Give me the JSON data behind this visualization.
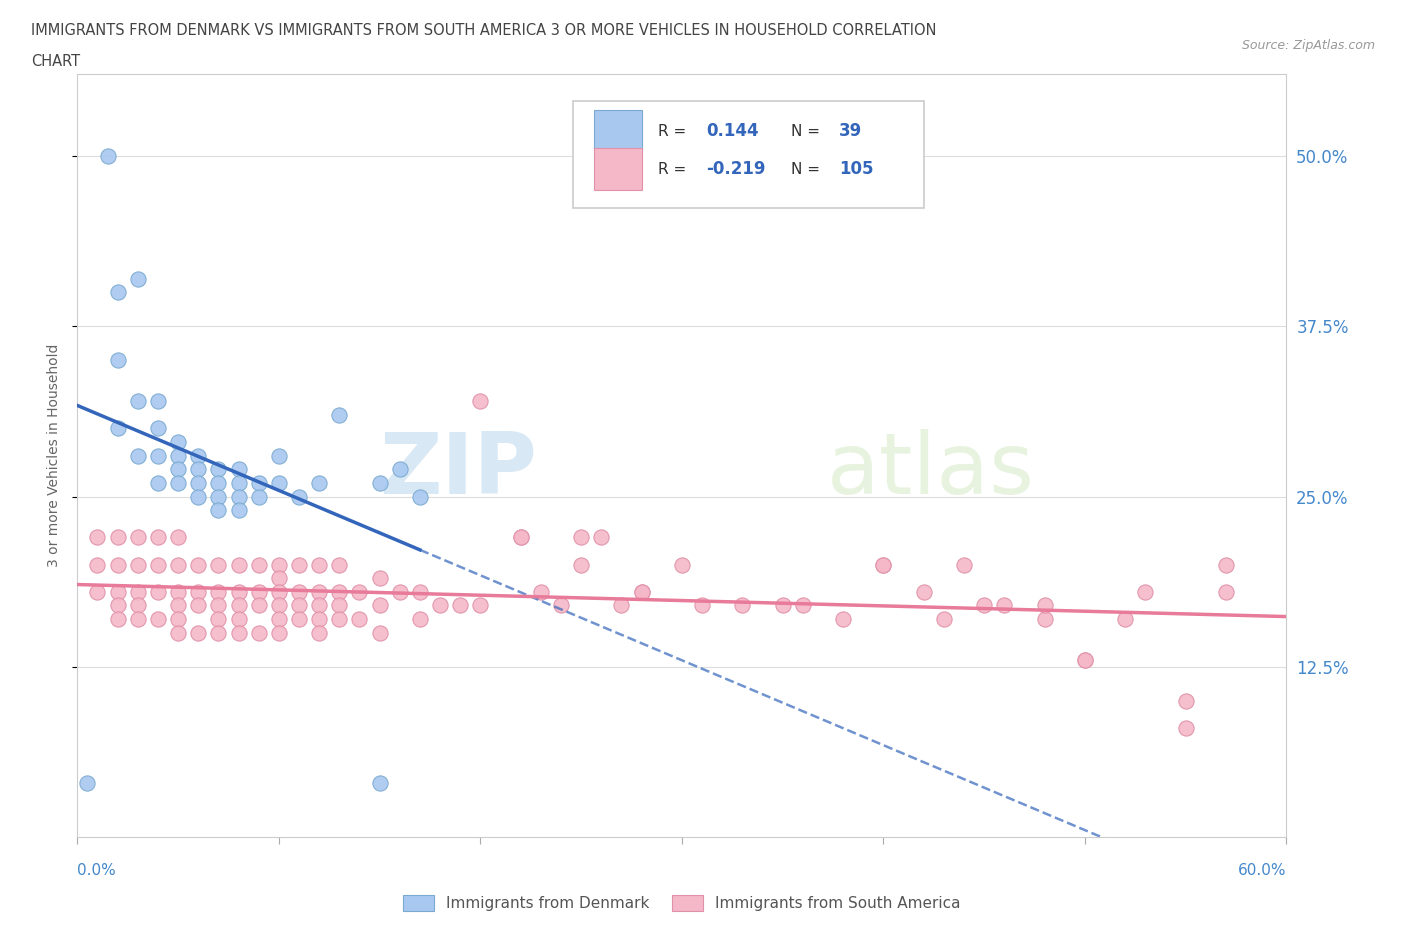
{
  "title_line1": "IMMIGRANTS FROM DENMARK VS IMMIGRANTS FROM SOUTH AMERICA 3 OR MORE VEHICLES IN HOUSEHOLD CORRELATION",
  "title_line2": "CHART",
  "source": "Source: ZipAtlas.com",
  "ylabel": "3 or more Vehicles in Household",
  "right_yticks": [
    "50.0%",
    "37.5%",
    "25.0%",
    "12.5%"
  ],
  "right_ytick_vals": [
    0.5,
    0.375,
    0.25,
    0.125
  ],
  "xlim": [
    0.0,
    0.6
  ],
  "ylim": [
    0.0,
    0.56
  ],
  "denmark_color": "#a8c8f0",
  "denmark_edge": "#7aaad0",
  "south_america_color": "#f5b8c8",
  "south_america_edge": "#e090a8",
  "line_denmark_color": "#3366bb",
  "line_sa_color": "#e87a9a",
  "watermark_zip": "ZIP",
  "watermark_atlas": "atlas",
  "denmark_x": [
    0.005,
    0.015,
    0.02,
    0.02,
    0.02,
    0.03,
    0.03,
    0.03,
    0.04,
    0.04,
    0.04,
    0.04,
    0.05,
    0.05,
    0.05,
    0.05,
    0.06,
    0.06,
    0.06,
    0.06,
    0.07,
    0.07,
    0.07,
    0.07,
    0.08,
    0.08,
    0.08,
    0.08,
    0.09,
    0.09,
    0.1,
    0.1,
    0.11,
    0.12,
    0.13,
    0.15,
    0.15,
    0.16,
    0.17
  ],
  "denmark_y": [
    0.04,
    0.5,
    0.4,
    0.35,
    0.3,
    0.41,
    0.32,
    0.28,
    0.32,
    0.3,
    0.28,
    0.26,
    0.29,
    0.28,
    0.27,
    0.26,
    0.28,
    0.27,
    0.26,
    0.25,
    0.27,
    0.26,
    0.25,
    0.24,
    0.27,
    0.26,
    0.25,
    0.24,
    0.26,
    0.25,
    0.28,
    0.26,
    0.25,
    0.26,
    0.31,
    0.26,
    0.04,
    0.27,
    0.25
  ],
  "sa_x": [
    0.01,
    0.01,
    0.01,
    0.02,
    0.02,
    0.02,
    0.02,
    0.02,
    0.03,
    0.03,
    0.03,
    0.03,
    0.03,
    0.04,
    0.04,
    0.04,
    0.04,
    0.05,
    0.05,
    0.05,
    0.05,
    0.05,
    0.05,
    0.06,
    0.06,
    0.06,
    0.06,
    0.07,
    0.07,
    0.07,
    0.07,
    0.07,
    0.08,
    0.08,
    0.08,
    0.08,
    0.08,
    0.09,
    0.09,
    0.09,
    0.09,
    0.1,
    0.1,
    0.1,
    0.1,
    0.1,
    0.1,
    0.11,
    0.11,
    0.11,
    0.11,
    0.12,
    0.12,
    0.12,
    0.12,
    0.12,
    0.13,
    0.13,
    0.13,
    0.13,
    0.14,
    0.14,
    0.15,
    0.15,
    0.15,
    0.16,
    0.17,
    0.17,
    0.18,
    0.19,
    0.2,
    0.2,
    0.22,
    0.23,
    0.24,
    0.25,
    0.26,
    0.27,
    0.28,
    0.3,
    0.31,
    0.33,
    0.35,
    0.36,
    0.38,
    0.4,
    0.42,
    0.44,
    0.46,
    0.48,
    0.5,
    0.52,
    0.53,
    0.55,
    0.57,
    0.22,
    0.25,
    0.28,
    0.4,
    0.43,
    0.45,
    0.48,
    0.5,
    0.55,
    0.57
  ],
  "sa_y": [
    0.22,
    0.2,
    0.18,
    0.22,
    0.2,
    0.18,
    0.17,
    0.16,
    0.22,
    0.2,
    0.18,
    0.17,
    0.16,
    0.22,
    0.2,
    0.18,
    0.16,
    0.22,
    0.2,
    0.18,
    0.17,
    0.16,
    0.15,
    0.2,
    0.18,
    0.17,
    0.15,
    0.2,
    0.18,
    0.17,
    0.16,
    0.15,
    0.2,
    0.18,
    0.17,
    0.16,
    0.15,
    0.2,
    0.18,
    0.17,
    0.15,
    0.2,
    0.19,
    0.18,
    0.17,
    0.16,
    0.15,
    0.2,
    0.18,
    0.17,
    0.16,
    0.2,
    0.18,
    0.17,
    0.16,
    0.15,
    0.2,
    0.18,
    0.17,
    0.16,
    0.18,
    0.16,
    0.19,
    0.17,
    0.15,
    0.18,
    0.18,
    0.16,
    0.17,
    0.17,
    0.32,
    0.17,
    0.22,
    0.18,
    0.17,
    0.22,
    0.22,
    0.17,
    0.18,
    0.2,
    0.17,
    0.17,
    0.17,
    0.17,
    0.16,
    0.2,
    0.18,
    0.2,
    0.17,
    0.16,
    0.13,
    0.16,
    0.18,
    0.08,
    0.2,
    0.22,
    0.2,
    0.18,
    0.2,
    0.16,
    0.17,
    0.17,
    0.13,
    0.1,
    0.18
  ]
}
